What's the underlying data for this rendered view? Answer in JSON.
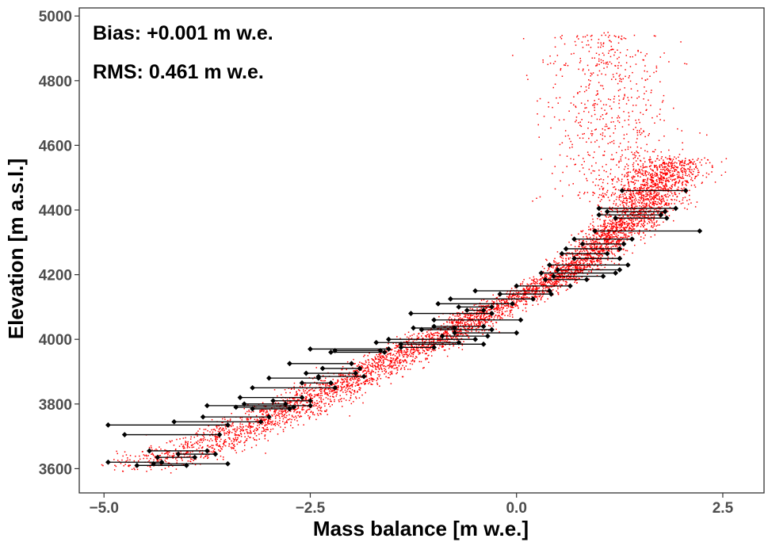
{
  "chart_data": {
    "type": "scatter",
    "title": "",
    "xlabel": "Mass balance [m w.e.]",
    "ylabel": "Elevation [m a.s.l.]",
    "xlim": [
      -5.3,
      3.0
    ],
    "ylim": [
      3525,
      5025
    ],
    "x_ticks": [
      -5.0,
      -2.5,
      0.0,
      2.5
    ],
    "x_tick_labels": [
      "−5.0",
      "−2.5",
      "0.0",
      "2.5"
    ],
    "y_ticks": [
      3600,
      3800,
      4000,
      4200,
      4400,
      4600,
      4800,
      5000
    ],
    "y_tick_labels": [
      "3600",
      "3800",
      "4000",
      "4200",
      "4400",
      "4600",
      "4800",
      "5000"
    ],
    "grid": false,
    "annotations": [
      "Bias: +0.001 m w.e.",
      "RMS: 0.461 m w.e."
    ],
    "modeled_color": "#ff0000",
    "observed_color": "#000000",
    "modeled_trend": [
      {
        "y": 3600,
        "x": -4.5
      },
      {
        "y": 3800,
        "x": -2.6
      },
      {
        "y": 4000,
        "x": -1.0
      },
      {
        "y": 4200,
        "x": 0.6
      },
      {
        "y": 4400,
        "x": 1.5
      },
      {
        "y": 4550,
        "x": 1.9
      }
    ],
    "observed_segments": [
      {
        "y": 4460,
        "x1": 1.28,
        "x2": 2.05
      },
      {
        "y": 4405,
        "x1": 1.0,
        "x2": 1.93
      },
      {
        "y": 4395,
        "x1": 1.1,
        "x2": 1.8
      },
      {
        "y": 4385,
        "x1": 1.0,
        "x2": 1.75
      },
      {
        "y": 4375,
        "x1": 1.2,
        "x2": 1.82
      },
      {
        "y": 4335,
        "x1": 0.95,
        "x2": 2.22
      },
      {
        "y": 4310,
        "x1": 0.7,
        "x2": 1.4
      },
      {
        "y": 4295,
        "x1": 0.8,
        "x2": 1.3
      },
      {
        "y": 4280,
        "x1": 0.6,
        "x2": 1.25
      },
      {
        "y": 4265,
        "x1": 0.55,
        "x2": 1.1
      },
      {
        "y": 4250,
        "x1": 0.7,
        "x2": 1.25
      },
      {
        "y": 4230,
        "x1": 0.4,
        "x2": 1.35
      },
      {
        "y": 4215,
        "x1": 0.5,
        "x2": 1.25
      },
      {
        "y": 4205,
        "x1": 0.3,
        "x2": 1.2
      },
      {
        "y": 4195,
        "x1": 0.45,
        "x2": 1.05
      },
      {
        "y": 4185,
        "x1": 0.35,
        "x2": 0.85
      },
      {
        "y": 4165,
        "x1": 0.0,
        "x2": 0.65
      },
      {
        "y": 4150,
        "x1": -0.5,
        "x2": 0.4
      },
      {
        "y": 4140,
        "x1": -0.2,
        "x2": 0.42
      },
      {
        "y": 4125,
        "x1": -0.8,
        "x2": 0.2
      },
      {
        "y": 4110,
        "x1": -0.95,
        "x2": -0.05
      },
      {
        "y": 4100,
        "x1": -0.7,
        "x2": -0.3
      },
      {
        "y": 4090,
        "x1": -0.6,
        "x2": -0.4
      },
      {
        "y": 4080,
        "x1": -1.28,
        "x2": -0.3
      },
      {
        "y": 4060,
        "x1": -1.0,
        "x2": 0.05
      },
      {
        "y": 4040,
        "x1": -1.0,
        "x2": -0.4
      },
      {
        "y": 4035,
        "x1": -1.25,
        "x2": -0.75
      },
      {
        "y": 4030,
        "x1": -1.15,
        "x2": -0.3
      },
      {
        "y": 4020,
        "x1": -0.75,
        "x2": 0.0
      },
      {
        "y": 4010,
        "x1": -0.9,
        "x2": -0.35
      },
      {
        "y": 4000,
        "x1": -1.55,
        "x2": -0.5
      },
      {
        "y": 3990,
        "x1": -1.7,
        "x2": -0.7
      },
      {
        "y": 3985,
        "x1": -1.4,
        "x2": -0.4
      },
      {
        "y": 3975,
        "x1": -1.4,
        "x2": -1.0
      },
      {
        "y": 3970,
        "x1": -2.5,
        "x2": -1.55
      },
      {
        "y": 3965,
        "x1": -2.2,
        "x2": -1.65
      },
      {
        "y": 3960,
        "x1": -2.25,
        "x2": -1.6
      },
      {
        "y": 3925,
        "x1": -2.75,
        "x2": -2.0
      },
      {
        "y": 3910,
        "x1": -2.35,
        "x2": -1.9
      },
      {
        "y": 3895,
        "x1": -2.55,
        "x2": -1.95
      },
      {
        "y": 3885,
        "x1": -2.4,
        "x2": -1.85
      },
      {
        "y": 3880,
        "x1": -3.0,
        "x2": -2.4
      },
      {
        "y": 3865,
        "x1": -2.6,
        "x2": -2.25
      },
      {
        "y": 3850,
        "x1": -3.2,
        "x2": -2.2
      },
      {
        "y": 3820,
        "x1": -3.35,
        "x2": -2.6
      },
      {
        "y": 3810,
        "x1": -2.95,
        "x2": -2.5
      },
      {
        "y": 3800,
        "x1": -3.3,
        "x2": -2.8
      },
      {
        "y": 3795,
        "x1": -3.75,
        "x2": -2.5
      },
      {
        "y": 3790,
        "x1": -3.4,
        "x2": -2.7
      },
      {
        "y": 3785,
        "x1": -3.2,
        "x2": -2.75
      },
      {
        "y": 3760,
        "x1": -3.8,
        "x2": -3.0
      },
      {
        "y": 3745,
        "x1": -4.15,
        "x2": -3.1
      },
      {
        "y": 3735,
        "x1": -4.95,
        "x2": -3.5
      },
      {
        "y": 3705,
        "x1": -4.75,
        "x2": -3.6
      },
      {
        "y": 3655,
        "x1": -4.45,
        "x2": -3.75
      },
      {
        "y": 3645,
        "x1": -4.1,
        "x2": -3.65
      },
      {
        "y": 3635,
        "x1": -4.35,
        "x2": -3.9
      },
      {
        "y": 3620,
        "x1": -4.95,
        "x2": -4.3
      },
      {
        "y": 3615,
        "x1": -4.4,
        "x2": -3.5
      },
      {
        "y": 3610,
        "x1": -4.6,
        "x2": -4.0
      }
    ]
  }
}
